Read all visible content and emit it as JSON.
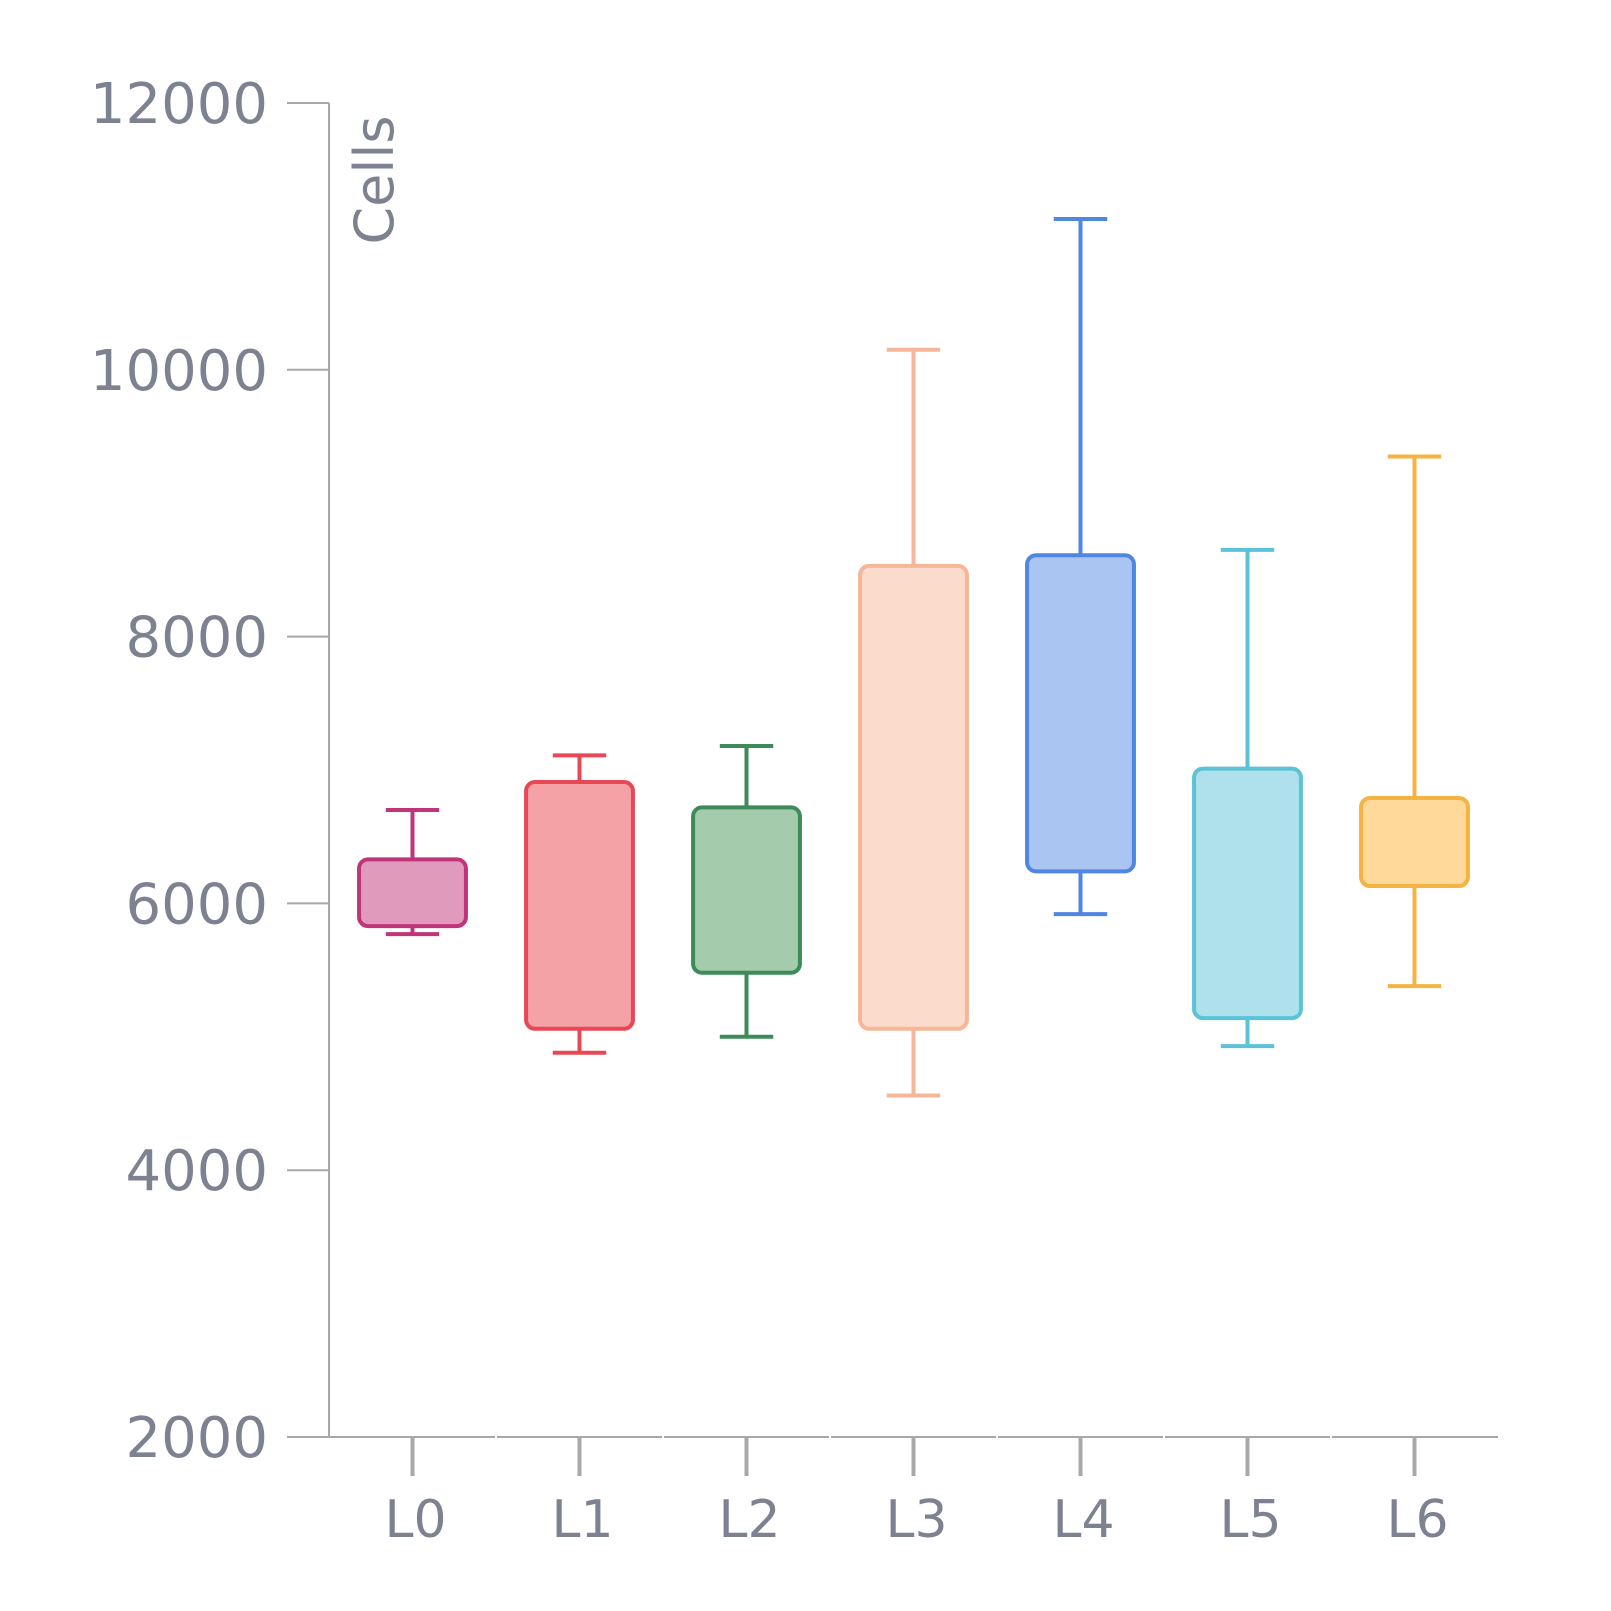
{
  "chart_data": {
    "type": "box",
    "ylabel": "Cells",
    "ylim": [
      2000,
      12000
    ],
    "yticks": [
      2000,
      4000,
      6000,
      8000,
      10000,
      12000
    ],
    "yticks_text": [
      "2000",
      "4000",
      "6000",
      "8000",
      "10000",
      "12000"
    ],
    "grid": false,
    "categories": [
      "L0",
      "L1",
      "L2",
      "L3",
      "L4",
      "L5",
      "L6"
    ],
    "boxes": [
      {
        "category": "L0",
        "min": 5770,
        "q1": 5830,
        "q3": 6330,
        "max": 6700,
        "color": "#c0357a",
        "fill": "#e09abc"
      },
      {
        "category": "L1",
        "min": 4880,
        "q1": 5060,
        "q3": 6910,
        "max": 7110,
        "color": "#e84855",
        "fill": "#f5a2a7"
      },
      {
        "category": "L2",
        "min": 5000,
        "q1": 5480,
        "q3": 6720,
        "max": 7180,
        "color": "#3d8b58",
        "fill": "#a3cbac"
      },
      {
        "category": "L3",
        "min": 4560,
        "q1": 5060,
        "q3": 8530,
        "max": 10150,
        "color": "#f5b797",
        "fill": "#fbdbcc"
      },
      {
        "category": "L4",
        "min": 5920,
        "q1": 6240,
        "q3": 8610,
        "max": 11130,
        "color": "#4e86e0",
        "fill": "#abc5f2"
      },
      {
        "category": "L5",
        "min": 4930,
        "q1": 5140,
        "q3": 7010,
        "max": 8650,
        "color": "#5bc3d6",
        "fill": "#aee1eb"
      },
      {
        "category": "L6",
        "min": 5380,
        "q1": 6130,
        "q3": 6790,
        "max": 9350,
        "color": "#f5b342",
        "fill": "#fed999"
      }
    ]
  }
}
